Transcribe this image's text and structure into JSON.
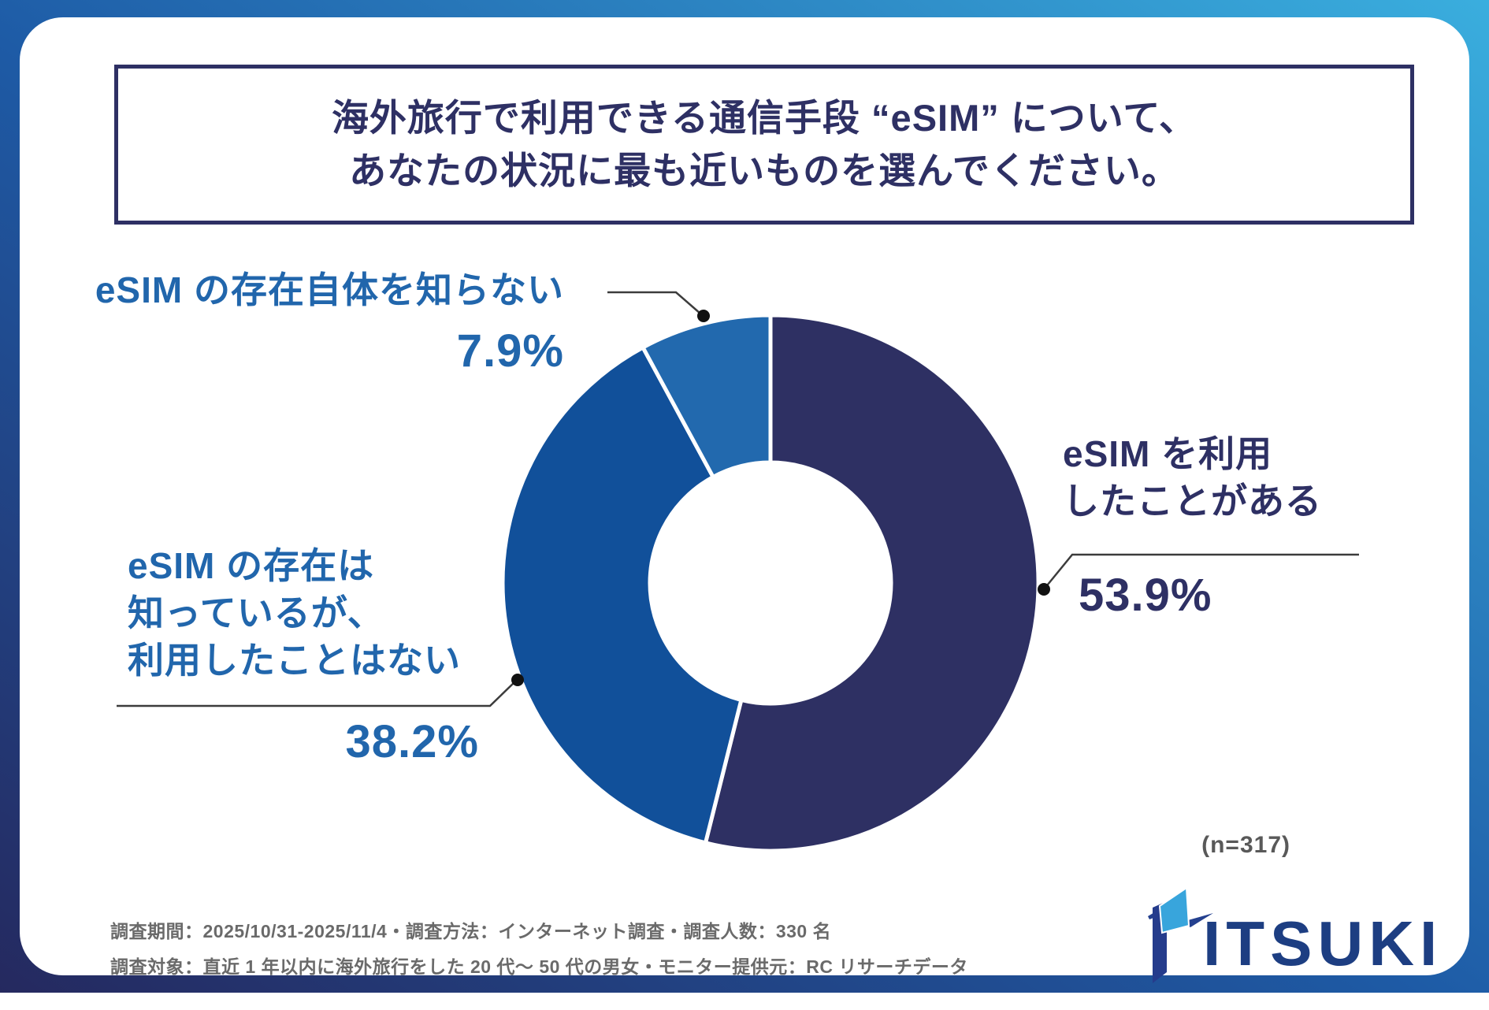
{
  "title": {
    "line1": "海外旅行で利用できる通信手段 “eSIM” について、",
    "line2": "あなたの状況に最も近いものを選んでください。"
  },
  "chart_data": {
    "type": "pie",
    "donut": true,
    "categories": [
      "eSIM を利用したことがある",
      "eSIM の存在は知っているが、利用したことはない",
      "eSIM の存在自体を知らない"
    ],
    "values": [
      53.9,
      38.2,
      7.9
    ],
    "unit": "%",
    "colors": [
      "#2e3063",
      "#11509a",
      "#2269ae"
    ],
    "start_angle_deg": 0,
    "direction": "clockwise",
    "separator_color": "#ffffff",
    "sample_size": "(n=317)"
  },
  "labels": {
    "unknown": {
      "text": "eSIM の存在自体を知らない",
      "value": "7.9%"
    },
    "used": {
      "line1": "eSIM を利用",
      "line2": "したことがある",
      "value": "53.9%"
    },
    "known_unused": {
      "line1": "eSIM の存在は",
      "line2": "知っているが、",
      "line3": "利用したことはない",
      "value": "38.2%"
    }
  },
  "sample_size": "(n=317)",
  "footer": {
    "line1": "調査期間：2025/10/31-2025/11/4・調査方法：インターネット調査・調査人数：330 名",
    "line2": "調査対象：直近 1 年以内に海外旅行をした 20 代〜 50 代の男女・モニター提供元：RC リサーチデータ"
  },
  "logo": {
    "text": "ITSUKI"
  },
  "theme": {
    "navy": "#2e3064",
    "blue": "#2166ac",
    "frame_gradient_start": "#3aaede",
    "frame_gradient_mid": "#1e5ba6",
    "frame_gradient_end": "#25295f",
    "footer_gray": "#6a6a6a"
  }
}
